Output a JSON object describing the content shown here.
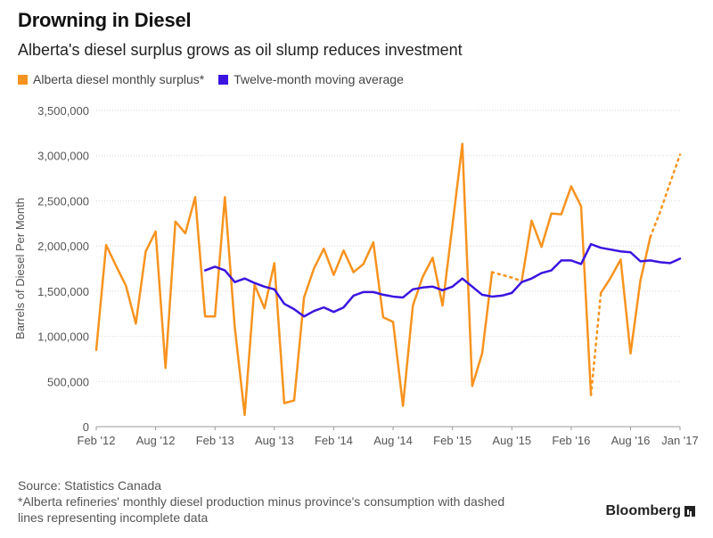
{
  "header": {
    "title": "Drowning in Diesel",
    "subtitle": "Alberta's diesel surplus grows as oil slump reduces investment"
  },
  "legend": [
    {
      "label": "Alberta diesel monthly surplus*",
      "color": "#f7931e"
    },
    {
      "label": "Twelve-month moving average",
      "color": "#3b14e0"
    }
  ],
  "footer": {
    "source": "Source: Statistics Canada",
    "note_line1": "*Alberta refineries' monthly diesel production minus province's consumption with dashed",
    "note_line2": "lines representing incomplete data",
    "brand": "Bloomberg"
  },
  "chart_data": {
    "type": "line",
    "title": "Drowning in Diesel",
    "ylabel": "Barrels of Diesel Per Month",
    "xlabel": "",
    "ylim": [
      0,
      3500000
    ],
    "yticks": [
      0,
      500000,
      1000000,
      1500000,
      2000000,
      2500000,
      3000000,
      3500000
    ],
    "ytick_labels": [
      "0",
      "500,000",
      "1,000,000",
      "1,500,000",
      "2,000,000",
      "2,500,000",
      "3,000,000",
      "3,500,000"
    ],
    "x_start": "Feb '12",
    "x_months": 60,
    "xtick_labels": [
      {
        "index": 0,
        "label": "Feb '12"
      },
      {
        "index": 6,
        "label": "Aug '12"
      },
      {
        "index": 12,
        "label": "Feb '13"
      },
      {
        "index": 18,
        "label": "Aug '13"
      },
      {
        "index": 24,
        "label": "Feb '14"
      },
      {
        "index": 30,
        "label": "Aug '14"
      },
      {
        "index": 36,
        "label": "Feb '15"
      },
      {
        "index": 42,
        "label": "Aug '15"
      },
      {
        "index": 48,
        "label": "Feb '16"
      },
      {
        "index": 54,
        "label": "Aug '16"
      },
      {
        "index": 59,
        "label": "Jan '17"
      }
    ],
    "grid": true,
    "series": [
      {
        "name": "Alberta diesel monthly surplus*",
        "color": "#f7931e",
        "values": [
          850000,
          2010000,
          1780000,
          1560000,
          1140000,
          1940000,
          2160000,
          650000,
          2270000,
          2140000,
          2540000,
          1220000,
          1220000,
          2540000,
          1100000,
          130000,
          1570000,
          1310000,
          1810000,
          260000,
          290000,
          1430000,
          1750000,
          1970000,
          1680000,
          1950000,
          1710000,
          1800000,
          2040000,
          1210000,
          1160000,
          230000,
          1340000,
          1660000,
          1870000,
          1340000,
          2230000,
          3130000,
          450000,
          810000,
          1710000,
          1680000,
          1650000,
          1610000,
          2280000,
          1990000,
          2360000,
          2350000,
          2660000,
          2440000,
          350000,
          1480000,
          1650000,
          1850000,
          810000,
          1620000,
          2100000,
          2380000,
          2700000,
          3010000
        ],
        "dashed_segments": [
          [
            40,
            43
          ],
          [
            50,
            51
          ],
          [
            56,
            59
          ]
        ]
      },
      {
        "name": "Twelve-month moving average",
        "color": "#3b14e0",
        "values": [
          null,
          null,
          null,
          null,
          null,
          null,
          null,
          null,
          null,
          null,
          null,
          1730000,
          1770000,
          1730000,
          1600000,
          1640000,
          1590000,
          1550000,
          1520000,
          1360000,
          1300000,
          1220000,
          1280000,
          1320000,
          1270000,
          1320000,
          1450000,
          1490000,
          1490000,
          1460000,
          1440000,
          1430000,
          1520000,
          1540000,
          1550000,
          1510000,
          1550000,
          1640000,
          1550000,
          1460000,
          1440000,
          1450000,
          1480000,
          1600000,
          1640000,
          1700000,
          1730000,
          1840000,
          1840000,
          1800000,
          2020000,
          1980000,
          1960000,
          1940000,
          1930000,
          1830000,
          1840000,
          1820000,
          1810000,
          1860000
        ]
      }
    ]
  }
}
